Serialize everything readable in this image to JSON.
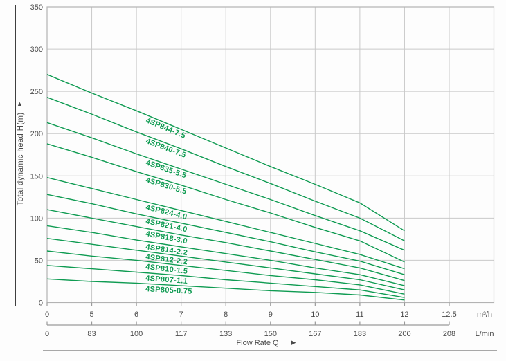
{
  "chart": {
    "y_axis": {
      "title": "Total dynamic head H(m)",
      "arrow_icon": "▲",
      "tick_labels": [
        "350",
        "300",
        "250",
        "200",
        "150",
        "100",
        "50",
        "0"
      ]
    },
    "x_axis_m3h": {
      "tick_labels": [
        "0",
        "5",
        "6",
        "7",
        "8",
        "9",
        "10",
        "11",
        "12",
        "12.5"
      ],
      "unit": "m³/h"
    },
    "x_axis_lmin": {
      "tick_labels": [
        "0",
        "83",
        "100",
        "117",
        "133",
        "150",
        "167",
        "183",
        "200",
        "208"
      ],
      "unit": "L/min"
    },
    "x_label": "Flow Rate Q",
    "x_label_arrow_icon": "▶",
    "colors": {
      "curve": "#0f9b52",
      "grid": "#c9c9c9",
      "border": "#b3b3b3",
      "tick": "#9a9a9a",
      "text": "#4a4a4a",
      "spine": "#3f3f3f",
      "rule": "#8c8c8c"
    }
  },
  "chart_data": {
    "type": "line",
    "title": "",
    "xlabel": "Flow Rate Q",
    "ylabel": "Total dynamic head H(m)",
    "x_unit_primary": "m³/h",
    "x_unit_secondary": "L/min",
    "x": [
      0,
      5,
      6,
      7,
      8,
      9,
      10,
      11,
      12
    ],
    "x_secondary_lmin": [
      0,
      83,
      100,
      117,
      133,
      150,
      167,
      183,
      200
    ],
    "x_axis_extra_tick": {
      "m3h": 12.5,
      "lmin": 208
    },
    "ylim": [
      0,
      350
    ],
    "y_tick_step": 50,
    "grid": true,
    "legend_position": "labels-on-curves",
    "series": [
      {
        "name": "4SP844-7.5",
        "values": [
          270,
          248,
          227,
          205,
          183,
          161,
          140,
          118,
          85
        ]
      },
      {
        "name": "4SP840-7.5",
        "values": [
          243,
          223,
          202,
          182,
          161,
          141,
          120,
          100,
          73
        ]
      },
      {
        "name": "4SP835-5.5",
        "values": [
          213,
          195,
          176,
          158,
          140,
          122,
          103,
          85,
          62
        ]
      },
      {
        "name": "4SP830-5.5",
        "values": [
          188,
          172,
          155,
          139,
          122,
          106,
          89,
          73,
          48
        ]
      },
      {
        "name": "4SP824-4.0",
        "values": [
          148,
          135,
          122,
          109,
          96,
          83,
          70,
          57,
          40
        ]
      },
      {
        "name": "4SP821-4.0",
        "values": [
          128,
          117,
          105,
          94,
          83,
          72,
          60,
          49,
          33
        ]
      },
      {
        "name": "4SP818-3.0",
        "values": [
          110,
          100,
          90,
          80,
          71,
          61,
          51,
          41,
          26
        ]
      },
      {
        "name": "4SP814-2.2",
        "values": [
          91,
          83,
          74,
          66,
          58,
          50,
          41,
          33,
          20
        ]
      },
      {
        "name": "4SP812-2.2",
        "values": [
          76,
          69,
          62,
          55,
          48,
          41,
          34,
          27,
          15
        ]
      },
      {
        "name": "4SP810-1.5",
        "values": [
          61,
          55,
          50,
          44,
          38,
          32,
          27,
          21,
          10
        ]
      },
      {
        "name": "4SP807-1.1",
        "values": [
          44,
          40,
          36,
          32,
          27,
          23,
          19,
          15,
          6
        ]
      },
      {
        "name": "4SP805-0.75",
        "values": [
          28,
          25,
          23,
          20,
          17,
          14,
          12,
          9,
          3
        ]
      }
    ]
  }
}
